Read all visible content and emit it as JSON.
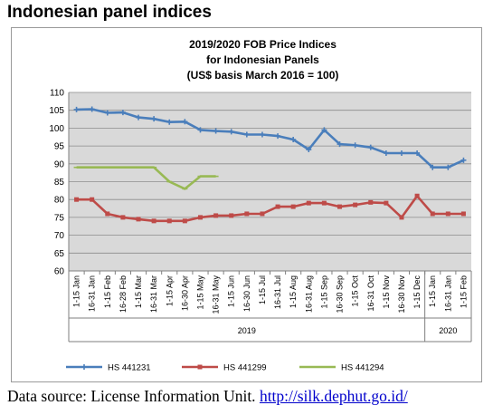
{
  "heading": "Indonesian panel indices",
  "source": {
    "label": "Data source: License Information Unit.",
    "link": "http://silk.dephut.go.id/"
  },
  "colors": {
    "HS 441231": "#4a7ebb",
    "HS 441299": "#be4b48",
    "HS 441294": "#98b954",
    "plot_bg": "#d9d9d9",
    "grid": "#8c8c8c"
  },
  "chart_data": {
    "type": "line",
    "title": [
      "2019/2020 FOB Price Indices",
      "for Indonesian Panels",
      "(US$ basis March 2016 = 100)"
    ],
    "xlabel": "",
    "ylabel": "",
    "ylim": [
      60,
      110
    ],
    "yticks": [
      60,
      65,
      70,
      75,
      80,
      85,
      90,
      95,
      100,
      105,
      110
    ],
    "grid": true,
    "legend": "bottom",
    "categories": [
      "1-15 Jan",
      "16-31 Jan",
      "1-15 Feb",
      "16-28 Feb",
      "1-15 Mar",
      "16-31 Mar",
      "1-15 Apr",
      "16-30 Apr",
      "1-15 May",
      "16-31 May",
      "1-15 Jun",
      "16-30 Jun",
      "1-15 Jul",
      "16-31 Jul",
      "1-15 Aug",
      "16-31 Aug",
      "1-15 Sep",
      "16-30 Sep",
      "1-15 Oct",
      "16-31 Oct",
      "1-15 Nov",
      "16-30 Nov",
      "1-15 Dec",
      "1-15 Jan",
      "16-31 Jan",
      "1-15 Feb"
    ],
    "year_groups": [
      {
        "label": "2019",
        "start": 0,
        "end": 22
      },
      {
        "label": "2020",
        "start": 23,
        "end": 25
      }
    ],
    "series": [
      {
        "name": "HS 441231",
        "values": [
          105.2,
          105.3,
          104.3,
          104.4,
          103,
          102.6,
          101.7,
          101.8,
          99.5,
          99.2,
          99,
          98.2,
          98.2,
          97.8,
          96.8,
          94,
          99.5,
          95.5,
          95.2,
          94.6,
          93,
          93,
          93,
          89,
          89,
          91
        ]
      },
      {
        "name": "HS 441299",
        "values": [
          80,
          80,
          76,
          75,
          74.5,
          74,
          74,
          74,
          75,
          75.5,
          75.5,
          76,
          76,
          78,
          78,
          79,
          79,
          78,
          78.5,
          79.2,
          79,
          75,
          81,
          76,
          76,
          76
        ]
      },
      {
        "name": "HS 441294",
        "values": [
          89,
          89,
          89,
          89,
          89,
          89,
          85,
          83,
          86.5,
          86.5,
          null,
          null,
          null,
          null,
          null,
          null,
          null,
          null,
          null,
          null,
          null,
          null,
          null,
          null,
          null,
          null
        ]
      }
    ]
  }
}
